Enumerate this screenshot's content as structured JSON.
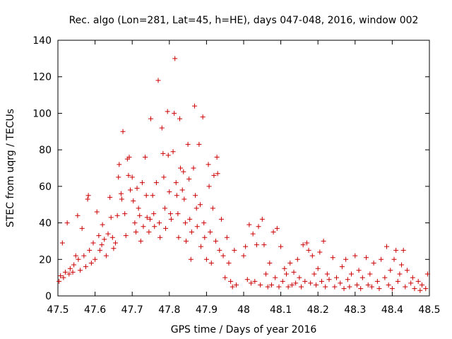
{
  "chart_data": {
    "type": "scatter",
    "title": "Rec. algo (Lon=281, Lat=45, h=HE), days 047-048, 2016, window 002",
    "xlabel": "GPS time / Days of year 2016",
    "ylabel": "STEC from uqrg / TECUs",
    "xlim": [
      47.5,
      48.5
    ],
    "ylim": [
      0,
      140
    ],
    "x_ticks": [
      "47.5",
      "47.6",
      "47.7",
      "47.8",
      "47.9",
      "48",
      "48.1",
      "48.2",
      "48.3",
      "48.4",
      "48.5"
    ],
    "y_ticks": [
      "0",
      "20",
      "40",
      "60",
      "80",
      "100",
      "120",
      "140"
    ],
    "marker": "+",
    "marker_color": "#cc0000",
    "series": [
      {
        "name": "STEC",
        "points": [
          [
            47.503,
            8
          ],
          [
            47.507,
            11
          ],
          [
            47.512,
            29
          ],
          [
            47.515,
            10
          ],
          [
            47.52,
            13
          ],
          [
            47.525,
            40
          ],
          [
            47.53,
            12
          ],
          [
            47.533,
            15
          ],
          [
            47.54,
            13
          ],
          [
            47.543,
            17
          ],
          [
            47.548,
            22
          ],
          [
            47.553,
            44
          ],
          [
            47.555,
            20
          ],
          [
            47.56,
            14
          ],
          [
            47.565,
            37
          ],
          [
            47.57,
            22
          ],
          [
            47.575,
            16
          ],
          [
            47.58,
            53
          ],
          [
            47.582,
            55
          ],
          [
            47.585,
            25
          ],
          [
            47.59,
            18
          ],
          [
            47.595,
            29
          ],
          [
            47.6,
            20
          ],
          [
            47.605,
            46
          ],
          [
            47.61,
            33
          ],
          [
            47.613,
            25
          ],
          [
            47.618,
            28
          ],
          [
            47.62,
            39
          ],
          [
            47.625,
            31
          ],
          [
            47.63,
            22
          ],
          [
            47.635,
            34
          ],
          [
            47.64,
            54
          ],
          [
            47.643,
            43
          ],
          [
            47.647,
            32
          ],
          [
            47.65,
            26
          ],
          [
            47.655,
            29
          ],
          [
            47.66,
            44
          ],
          [
            47.663,
            65
          ],
          [
            47.665,
            72
          ],
          [
            47.67,
            56
          ],
          [
            47.672,
            53
          ],
          [
            47.675,
            90
          ],
          [
            47.68,
            45
          ],
          [
            47.683,
            33
          ],
          [
            47.687,
            75
          ],
          [
            47.69,
            66
          ],
          [
            47.692,
            76
          ],
          [
            47.695,
            58
          ],
          [
            47.7,
            65
          ],
          [
            47.703,
            52
          ],
          [
            47.707,
            40
          ],
          [
            47.71,
            35
          ],
          [
            47.713,
            59
          ],
          [
            47.717,
            48
          ],
          [
            47.72,
            44
          ],
          [
            47.723,
            30
          ],
          [
            47.727,
            62
          ],
          [
            47.73,
            38
          ],
          [
            47.735,
            76
          ],
          [
            47.738,
            55
          ],
          [
            47.74,
            43
          ],
          [
            47.745,
            35
          ],
          [
            47.748,
            42
          ],
          [
            47.75,
            97
          ],
          [
            47.755,
            55
          ],
          [
            47.758,
            45
          ],
          [
            47.76,
            38
          ],
          [
            47.765,
            62
          ],
          [
            47.77,
            118
          ],
          [
            47.773,
            40
          ],
          [
            47.775,
            32
          ],
          [
            47.78,
            92
          ],
          [
            47.783,
            78
          ],
          [
            47.785,
            65
          ],
          [
            47.788,
            48
          ],
          [
            47.79,
            37
          ],
          [
            47.795,
            101
          ],
          [
            47.797,
            77
          ],
          [
            47.8,
            57
          ],
          [
            47.803,
            45
          ],
          [
            47.805,
            42
          ],
          [
            47.81,
            79
          ],
          [
            47.813,
            100
          ],
          [
            47.815,
            130
          ],
          [
            47.818,
            62
          ],
          [
            47.82,
            55
          ],
          [
            47.823,
            45
          ],
          [
            47.825,
            32
          ],
          [
            47.828,
            97
          ],
          [
            47.83,
            70
          ],
          [
            47.835,
            58
          ],
          [
            47.838,
            68
          ],
          [
            47.84,
            53
          ],
          [
            47.843,
            40
          ],
          [
            47.845,
            30
          ],
          [
            47.85,
            83
          ],
          [
            47.853,
            64
          ],
          [
            47.855,
            42
          ],
          [
            47.858,
            20
          ],
          [
            47.86,
            35
          ],
          [
            47.865,
            70
          ],
          [
            47.868,
            104
          ],
          [
            47.87,
            55
          ],
          [
            47.873,
            48
          ],
          [
            47.875,
            38
          ],
          [
            47.88,
            83
          ],
          [
            47.883,
            50
          ],
          [
            47.885,
            27
          ],
          [
            47.89,
            98
          ],
          [
            47.893,
            40
          ],
          [
            47.895,
            32
          ],
          [
            47.9,
            20
          ],
          [
            47.905,
            72
          ],
          [
            47.907,
            60
          ],
          [
            47.91,
            35
          ],
          [
            47.913,
            18
          ],
          [
            47.917,
            48
          ],
          [
            47.92,
            66
          ],
          [
            47.925,
            30
          ],
          [
            47.928,
            76
          ],
          [
            47.93,
            67
          ],
          [
            47.935,
            25
          ],
          [
            47.94,
            42
          ],
          [
            47.945,
            22
          ],
          [
            47.95,
            10
          ],
          [
            47.955,
            32
          ],
          [
            47.96,
            18
          ],
          [
            47.965,
            8
          ],
          [
            47.97,
            5
          ],
          [
            47.975,
            25
          ],
          [
            47.98,
            6
          ],
          [
            48.0,
            22
          ],
          [
            48.005,
            27
          ],
          [
            48.01,
            9
          ],
          [
            48.015,
            39
          ],
          [
            48.02,
            7
          ],
          [
            48.025,
            34
          ],
          [
            48.03,
            8
          ],
          [
            48.035,
            28
          ],
          [
            48.04,
            38
          ],
          [
            48.045,
            6
          ],
          [
            48.05,
            42
          ],
          [
            48.055,
            28
          ],
          [
            48.06,
            12
          ],
          [
            48.065,
            5
          ],
          [
            48.07,
            18
          ],
          [
            48.075,
            6
          ],
          [
            48.08,
            35
          ],
          [
            48.085,
            10
          ],
          [
            48.09,
            37
          ],
          [
            48.095,
            5
          ],
          [
            48.1,
            27
          ],
          [
            48.105,
            8
          ],
          [
            48.11,
            15
          ],
          [
            48.115,
            12
          ],
          [
            48.12,
            5
          ],
          [
            48.125,
            18
          ],
          [
            48.13,
            6
          ],
          [
            48.135,
            13
          ],
          [
            48.14,
            7
          ],
          [
            48.145,
            20
          ],
          [
            48.15,
            10
          ],
          [
            48.155,
            5
          ],
          [
            48.16,
            28
          ],
          [
            48.165,
            8
          ],
          [
            48.17,
            29
          ],
          [
            48.175,
            25
          ],
          [
            48.18,
            7
          ],
          [
            48.185,
            22
          ],
          [
            48.19,
            12
          ],
          [
            48.195,
            6
          ],
          [
            48.2,
            15
          ],
          [
            48.205,
            24
          ],
          [
            48.21,
            8
          ],
          [
            48.215,
            30
          ],
          [
            48.22,
            5
          ],
          [
            48.225,
            12
          ],
          [
            48.23,
            9
          ],
          [
            48.24,
            21
          ],
          [
            48.245,
            5
          ],
          [
            48.25,
            10
          ],
          [
            48.26,
            7
          ],
          [
            48.265,
            16
          ],
          [
            48.27,
            4
          ],
          [
            48.275,
            20
          ],
          [
            48.28,
            9
          ],
          [
            48.285,
            5
          ],
          [
            48.29,
            12
          ],
          [
            48.3,
            22
          ],
          [
            48.305,
            6
          ],
          [
            48.31,
            14
          ],
          [
            48.315,
            4
          ],
          [
            48.32,
            10
          ],
          [
            48.33,
            21
          ],
          [
            48.335,
            6
          ],
          [
            48.34,
            12
          ],
          [
            48.345,
            5
          ],
          [
            48.35,
            18
          ],
          [
            48.36,
            8
          ],
          [
            48.365,
            4
          ],
          [
            48.37,
            20
          ],
          [
            48.38,
            10
          ],
          [
            48.385,
            27
          ],
          [
            48.39,
            6
          ],
          [
            48.395,
            14
          ],
          [
            48.4,
            4
          ],
          [
            48.405,
            20
          ],
          [
            48.41,
            25
          ],
          [
            48.415,
            8
          ],
          [
            48.42,
            12
          ],
          [
            48.425,
            17
          ],
          [
            48.43,
            25
          ],
          [
            48.435,
            5
          ],
          [
            48.44,
            14
          ],
          [
            48.45,
            7
          ],
          [
            48.455,
            10
          ],
          [
            48.46,
            4
          ],
          [
            48.47,
            8
          ],
          [
            48.475,
            3
          ],
          [
            48.48,
            6
          ],
          [
            48.49,
            4
          ],
          [
            48.495,
            12
          ]
        ]
      }
    ]
  }
}
